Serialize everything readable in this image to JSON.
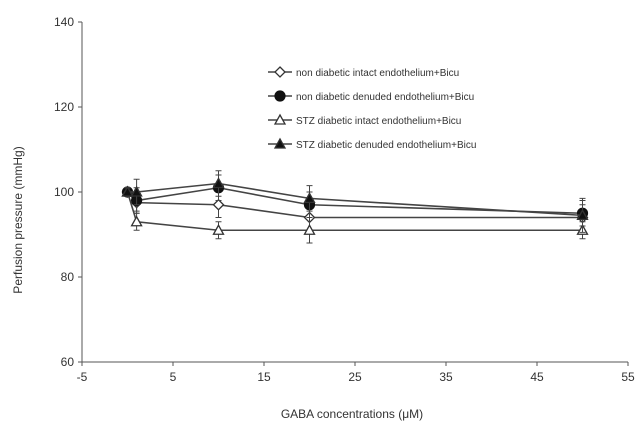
{
  "chart_data": {
    "type": "line",
    "xlabel": "GABA concentrations (μM)",
    "ylabel": "Perfusion pressure (mmHg)",
    "xlim": [
      -5,
      55
    ],
    "ylim": [
      60,
      140
    ],
    "x_ticks": [
      "-5",
      "5",
      "15",
      "25",
      "35",
      "45",
      "55"
    ],
    "y_ticks": [
      "60",
      "80",
      "100",
      "120",
      "140"
    ],
    "x": [
      0,
      1,
      10,
      20,
      50
    ],
    "grid": false,
    "legend_position": "top-right",
    "series": [
      {
        "name": "non diabetic intact endothelium+Bicu",
        "marker": "diamond-open",
        "values": [
          100,
          97.5,
          97,
          94,
          94
        ],
        "errors": [
          1,
          2,
          3,
          3,
          3
        ]
      },
      {
        "name": "non diabetic denuded endothelium+Bicu",
        "marker": "circle-filled",
        "values": [
          100,
          98,
          101,
          97,
          95
        ],
        "errors": [
          1,
          3,
          3,
          3,
          3
        ]
      },
      {
        "name": "STZ diabetic intact endothelium+Bicu",
        "marker": "triangle-open",
        "values": [
          100,
          93,
          91,
          91,
          91
        ],
        "errors": [
          1,
          2,
          2,
          3,
          2
        ]
      },
      {
        "name": "STZ diabetic denuded endothelium+Bicu",
        "marker": "triangle-filled",
        "values": [
          100,
          100,
          102,
          98.5,
          94.5
        ],
        "errors": [
          1,
          3,
          3,
          3,
          4
        ]
      }
    ]
  }
}
